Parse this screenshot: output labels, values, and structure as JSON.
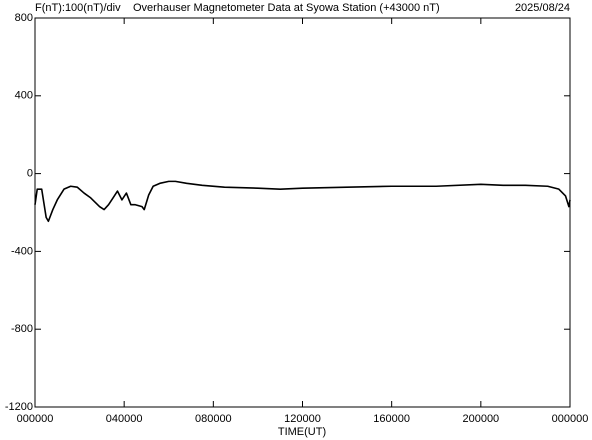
{
  "chart_data": {
    "type": "line",
    "scale_label": "F(nT):100(nT)/div",
    "title": "Overhauser Magnetometer Data at Syowa Station (+43000 nT)",
    "date": "2025/08/24",
    "xlabel": "TIME(UT)",
    "color": "#000000",
    "x": [
      0,
      0.1,
      0.3,
      0.5,
      0.6,
      0.8,
      1.0,
      1.3,
      1.6,
      1.9,
      2.2,
      2.5,
      2.9,
      3.1,
      3.3,
      3.5,
      3.7,
      3.9,
      4.1,
      4.3,
      4.5,
      4.8,
      4.9,
      5.1,
      5.3,
      5.6,
      6.0,
      6.3,
      6.8,
      7.5,
      8.5,
      10,
      11,
      12,
      14,
      16,
      18,
      20,
      21,
      22,
      23,
      23.5,
      23.8,
      23.95,
      24
    ],
    "values": [
      -160,
      -80,
      -80,
      -225,
      -245,
      -185,
      -135,
      -80,
      -65,
      -70,
      -100,
      -125,
      -170,
      -185,
      -160,
      -125,
      -90,
      -135,
      -100,
      -160,
      -160,
      -170,
      -185,
      -110,
      -65,
      -50,
      -40,
      -40,
      -50,
      -60,
      -70,
      -75,
      -80,
      -75,
      -70,
      -65,
      -65,
      -55,
      -60,
      -60,
      -65,
      -80,
      -115,
      -170,
      -135
    ],
    "xlim": [
      0,
      24
    ],
    "xticks": [
      {
        "value": 0,
        "label": "000000"
      },
      {
        "value": 4,
        "label": "040000"
      },
      {
        "value": 8,
        "label": "080000"
      },
      {
        "value": 12,
        "label": "120000"
      },
      {
        "value": 16,
        "label": "160000"
      },
      {
        "value": 20,
        "label": "200000"
      },
      {
        "value": 24,
        "label": "000000"
      }
    ],
    "ylim": [
      -1200,
      800
    ],
    "yticks": [
      800,
      400,
      0,
      -400,
      -800,
      -1200
    ]
  }
}
